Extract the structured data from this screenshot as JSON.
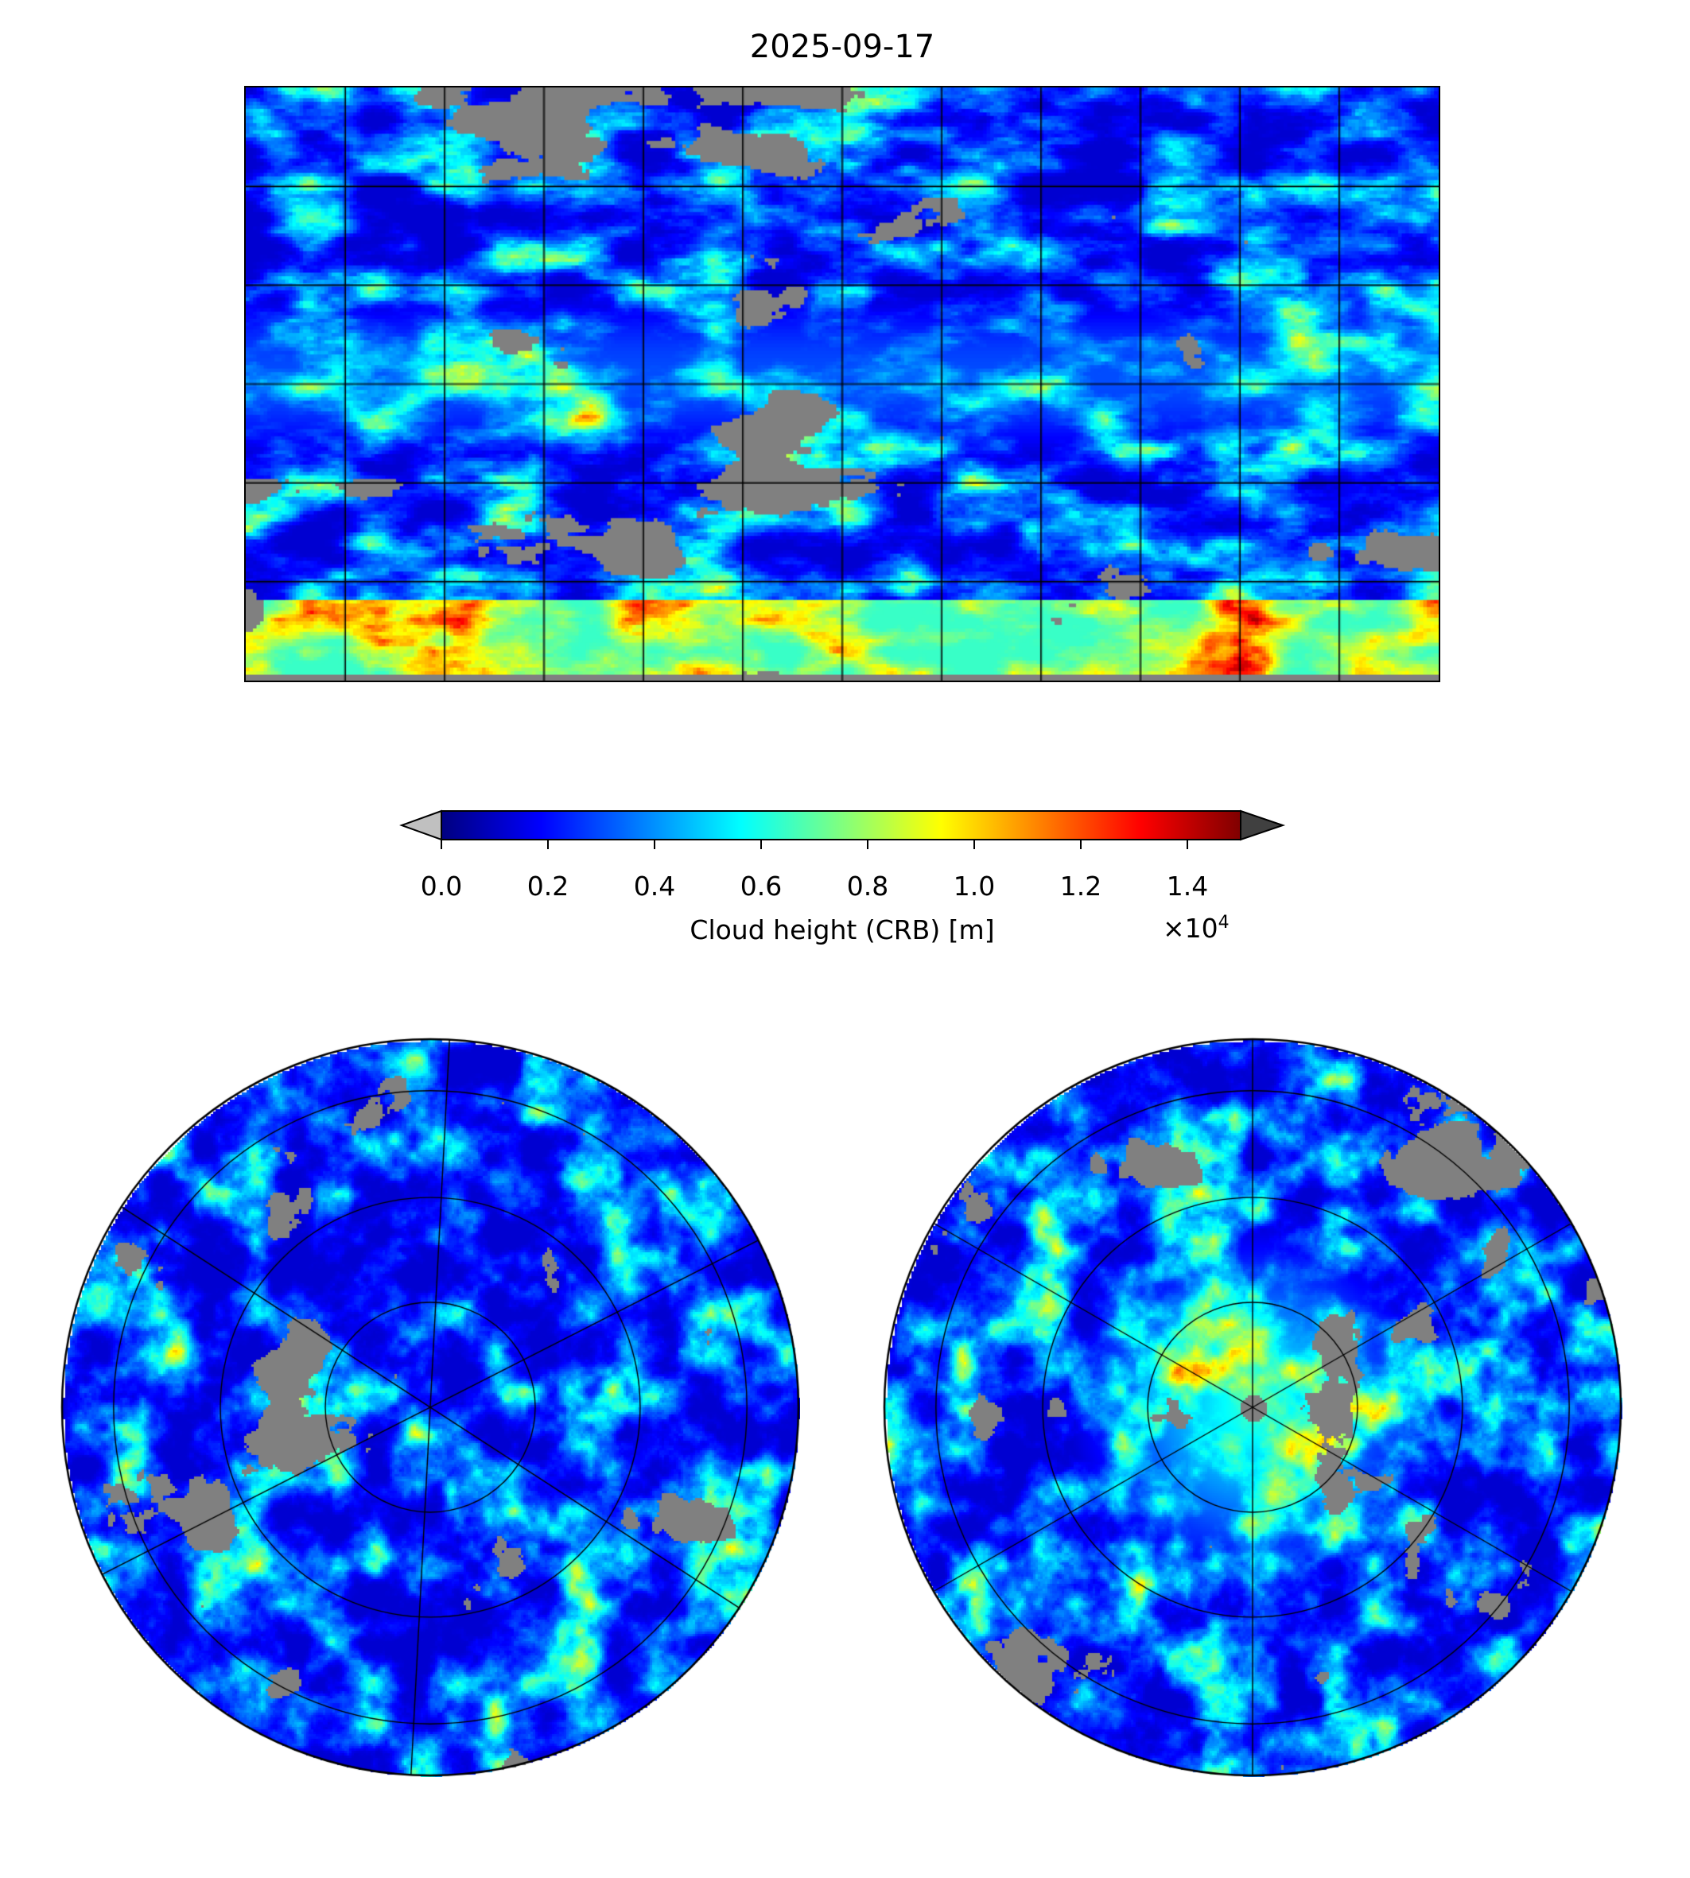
{
  "title": "2025-09-17",
  "colorbar": {
    "label": "Cloud height (CRB) [m]",
    "multiplier": "×10",
    "multiplier_exp": "4",
    "ticks": [
      "0.0",
      "0.2",
      "0.4",
      "0.6",
      "0.8",
      "1.0",
      "1.2",
      "1.4"
    ],
    "tick_values": [
      0.0,
      0.2,
      0.4,
      0.6,
      0.8,
      1.0,
      1.2,
      1.4
    ],
    "range": [
      0.0,
      1.5
    ],
    "colormap": "jet",
    "under_color": "#c0c0c0",
    "over_color": "#404040",
    "missing_color": "#808080"
  },
  "maps": {
    "global": {
      "projection": "plate-carree",
      "grid_lon_step_deg": 30,
      "grid_lat_step_deg": 30
    },
    "north_polar": {
      "projection": "north-polar-stereographic"
    },
    "south_polar": {
      "projection": "south-polar-stereographic"
    }
  }
}
